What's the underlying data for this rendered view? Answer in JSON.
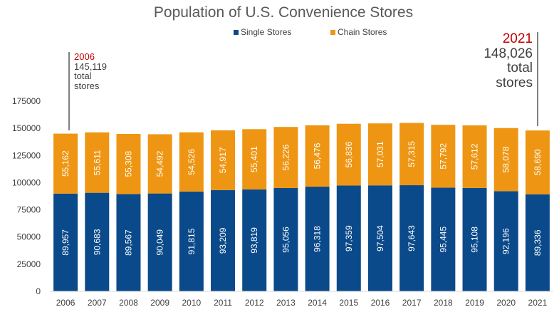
{
  "chart_data": {
    "type": "bar",
    "stacked": true,
    "title": "Population of U.S. Convenience Stores",
    "categories": [
      "2006",
      "2007",
      "2008",
      "2009",
      "2010",
      "2011",
      "2012",
      "2013",
      "2014",
      "2015",
      "2016",
      "2017",
      "2018",
      "2019",
      "2020",
      "2021"
    ],
    "series": [
      {
        "name": "Single Stores",
        "color": "#0a4a8a",
        "values": [
          89957,
          90683,
          89567,
          90049,
          91815,
          93209,
          93819,
          95056,
          96318,
          97359,
          97504,
          97643,
          95445,
          95108,
          92196,
          89336
        ],
        "labels": [
          "89,957",
          "90,683",
          "89,567",
          "90,049",
          "91,815",
          "93,209",
          "93,819",
          "95,056",
          "96,318",
          "97,359",
          "97,504",
          "97,643",
          "95,445",
          "95,108",
          "92,196",
          "89,336"
        ]
      },
      {
        "name": "Chain Stores",
        "color": "#ee9613",
        "values": [
          55162,
          55611,
          55308,
          54492,
          54526,
          54917,
          55401,
          56226,
          56476,
          56836,
          57031,
          57315,
          57792,
          57612,
          58078,
          58690
        ],
        "labels": [
          "55,162",
          "55,611",
          "55,308",
          "54,492",
          "54,526",
          "54,917",
          "55,401",
          "56,226",
          "56,476",
          "56,836",
          "57,031",
          "57,315",
          "57,792",
          "57,612",
          "58,078",
          "58,690"
        ]
      }
    ],
    "yticks": [
      "0",
      "25000",
      "50000",
      "75000",
      "100000",
      "125000",
      "150000",
      "175000"
    ],
    "ylim": [
      0,
      175000
    ],
    "grid": false,
    "legend_position": "top",
    "annotations": {
      "left": {
        "year": "2006",
        "value": "145,119",
        "line1": "total",
        "line2": "stores"
      },
      "right": {
        "year": "2021",
        "value": "148,026",
        "line1": "total",
        "line2": "stores"
      }
    },
    "colors": {
      "axis_text": "#404040",
      "annotation_year": "#c00000",
      "label_text": "#ffffff",
      "title": "#595959"
    }
  }
}
